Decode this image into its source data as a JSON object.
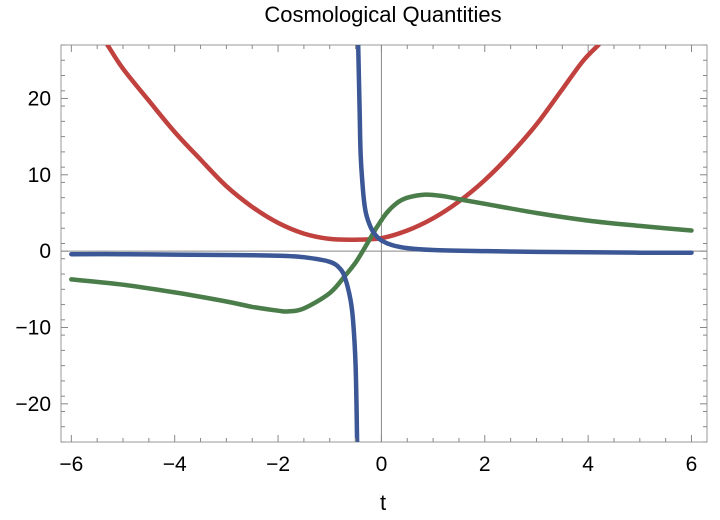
{
  "chart_data": {
    "type": "line",
    "title": "Cosmological Quantities",
    "xlabel": "t",
    "ylabel": "",
    "xlim": [
      -6.2,
      6.3
    ],
    "ylim": [
      -25,
      27
    ],
    "grid": false,
    "x_ticks": [
      -6,
      -4,
      -2,
      0,
      2,
      4,
      6
    ],
    "x_tick_labels": [
      "−6",
      "−4",
      "−2",
      "0",
      "2",
      "4",
      "6"
    ],
    "y_ticks": [
      -20,
      -10,
      0,
      10,
      20
    ],
    "y_tick_labels": [
      "−20",
      "−10",
      "0",
      "10",
      "20"
    ],
    "series": [
      {
        "color": "#c0413d",
        "points": [
          [
            -5.3,
            27
          ],
          [
            -5.0,
            23.9
          ],
          [
            -4.5,
            19.7
          ],
          [
            -4.0,
            15.6
          ],
          [
            -3.5,
            12.0
          ],
          [
            -3.0,
            8.5
          ],
          [
            -2.5,
            5.8
          ],
          [
            -2.0,
            3.7
          ],
          [
            -1.5,
            2.3
          ],
          [
            -1.0,
            1.6
          ],
          [
            -0.5,
            1.5
          ],
          [
            0.0,
            1.7
          ],
          [
            0.5,
            2.7
          ],
          [
            1.0,
            4.3
          ],
          [
            1.5,
            6.5
          ],
          [
            2.0,
            9.3
          ],
          [
            2.5,
            12.7
          ],
          [
            3.0,
            16.6
          ],
          [
            3.5,
            21.2
          ],
          [
            3.9,
            24.9
          ],
          [
            4.2,
            27
          ]
        ]
      },
      {
        "color": "#4a7d4a",
        "points": [
          [
            -6.0,
            -3.7
          ],
          [
            -5.0,
            -4.4
          ],
          [
            -4.0,
            -5.4
          ],
          [
            -3.0,
            -6.6
          ],
          [
            -2.5,
            -7.3
          ],
          [
            -2.0,
            -7.8
          ],
          [
            -1.8,
            -7.9
          ],
          [
            -1.5,
            -7.5
          ],
          [
            -1.0,
            -5.5
          ],
          [
            -0.7,
            -3.2
          ],
          [
            -0.5,
            -1.5
          ],
          [
            -0.3,
            0.7
          ],
          [
            -0.1,
            3.0
          ],
          [
            0.1,
            5.0
          ],
          [
            0.3,
            6.3
          ],
          [
            0.5,
            7.0
          ],
          [
            0.85,
            7.4
          ],
          [
            1.2,
            7.2
          ],
          [
            1.5,
            6.8
          ],
          [
            2.0,
            6.2
          ],
          [
            3.0,
            5.0
          ],
          [
            4.0,
            4.0
          ],
          [
            5.0,
            3.3
          ],
          [
            6.0,
            2.7
          ]
        ]
      },
      {
        "color": "#3b5796",
        "points": [
          [
            -6.0,
            -0.4
          ],
          [
            -5.0,
            -0.4
          ],
          [
            -4.0,
            -0.45
          ],
          [
            -3.0,
            -0.5
          ],
          [
            -2.0,
            -0.6
          ],
          [
            -1.5,
            -0.8
          ],
          [
            -1.0,
            -1.4
          ],
          [
            -0.8,
            -2.3
          ],
          [
            -0.7,
            -3.6
          ],
          [
            -0.6,
            -6.3
          ],
          [
            -0.55,
            -9.0
          ],
          [
            -0.5,
            -15.0
          ],
          [
            -0.47,
            -25
          ]
        ]
      },
      {
        "color": "#3b5796",
        "points": [
          [
            -0.45,
            27
          ],
          [
            -0.42,
            18.0
          ],
          [
            -0.4,
            12.5
          ],
          [
            -0.35,
            7.5
          ],
          [
            -0.3,
            5.0
          ],
          [
            -0.2,
            3.0
          ],
          [
            -0.1,
            2.0
          ],
          [
            0.0,
            1.4
          ],
          [
            0.2,
            0.8
          ],
          [
            0.5,
            0.4
          ],
          [
            1.0,
            0.15
          ],
          [
            2.0,
            0.0
          ],
          [
            3.0,
            -0.1
          ],
          [
            4.0,
            -0.15
          ],
          [
            5.0,
            -0.2
          ],
          [
            6.0,
            -0.2
          ]
        ]
      }
    ]
  }
}
